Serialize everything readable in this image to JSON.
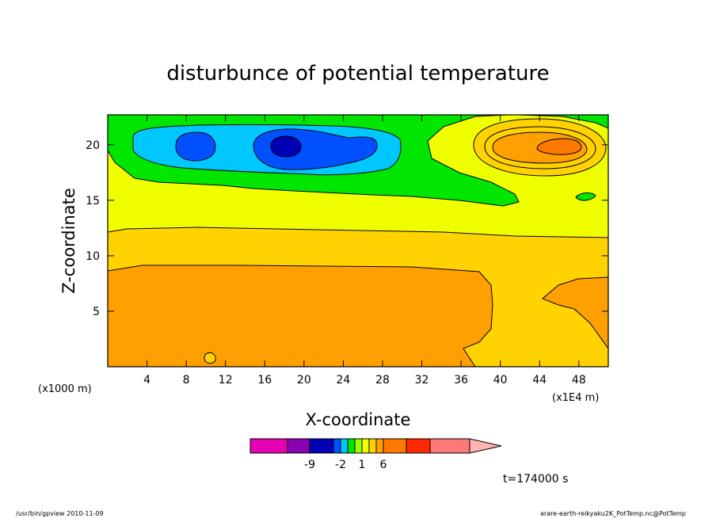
{
  "chart_data": {
    "type": "contour",
    "title": "disturbunce of potential temperature",
    "xlabel": "X-coordinate",
    "ylabel": "Z-coordinate",
    "x_unit_left": "(x1000 m)",
    "x_unit_right": "(x1E4 m)",
    "xlim": [
      0,
      51
    ],
    "ylim": [
      0,
      22.7
    ],
    "x_ticks": [
      4,
      8,
      12,
      16,
      20,
      24,
      28,
      32,
      36,
      40,
      44,
      48
    ],
    "y_ticks": [
      5,
      10,
      15,
      20
    ],
    "time_label": "t=174000 s",
    "colorbar": {
      "labels": [
        {
          "text": "-9",
          "value": -9
        },
        {
          "text": "-2",
          "value": -2
        },
        {
          "text": "1",
          "value": 1
        },
        {
          "text": "6",
          "value": 6
        }
      ],
      "colors": [
        "#e600b4",
        "#8c00b4",
        "#0000b4",
        "#0050ff",
        "#00c8ff",
        "#00e600",
        "#9bff00",
        "#f0ff00",
        "#ffd200",
        "#ffa000",
        "#ff7800",
        "#ff2800",
        "#ff7878",
        "#ffb4b4"
      ]
    }
  },
  "footer": {
    "left": "/usr/bin/gpview   2010-11-09",
    "right": "arare-earth-reikyaku2K_PotTemp.nc@PotTemp"
  }
}
